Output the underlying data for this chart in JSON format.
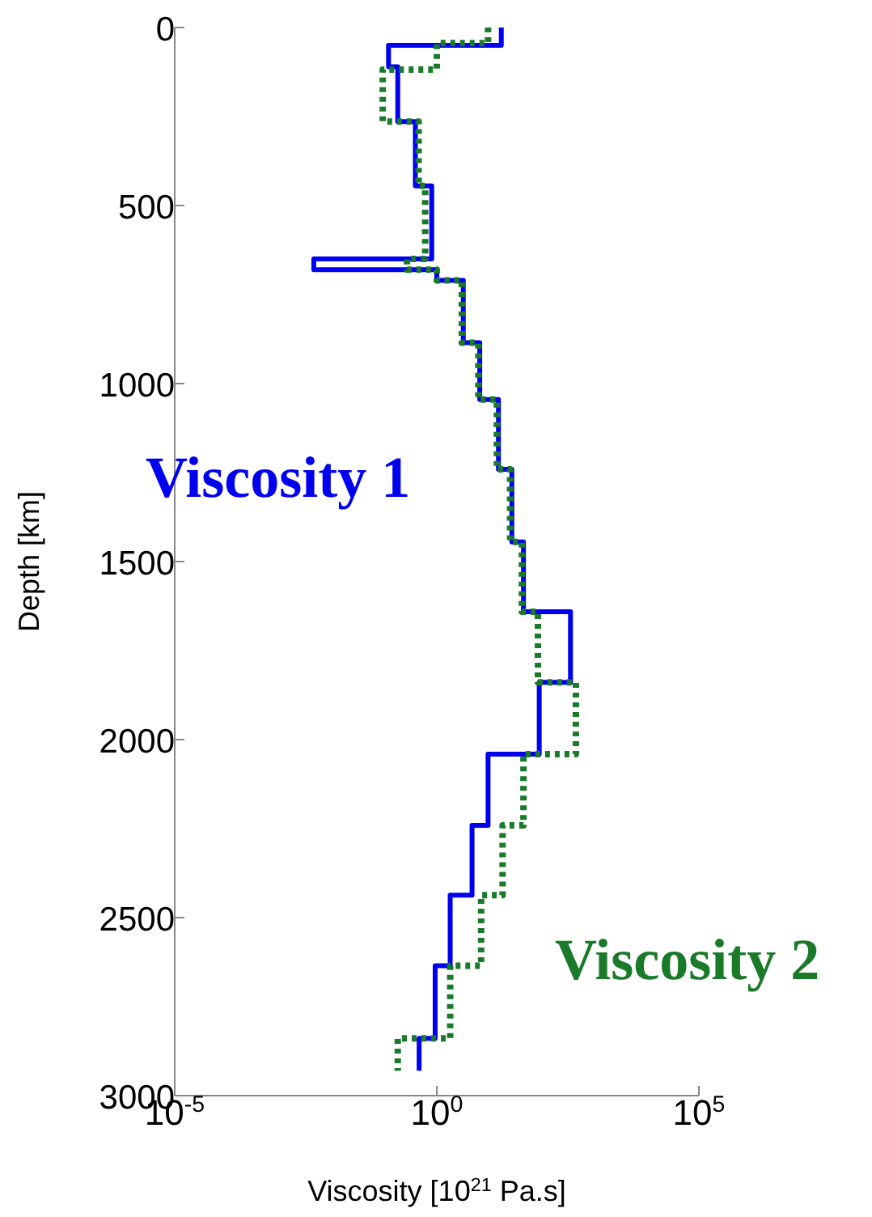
{
  "chart_data": {
    "type": "step",
    "orientation": "horizontal",
    "xlabel": "Viscosity [10$^{21}$ Pa.s]",
    "ylabel": "Depth [km]",
    "log": "x",
    "xlim": [
      1e-05,
      100000
    ],
    "xticks": [
      {
        "value": 1e-05,
        "label": "10$^{-5}$"
      },
      {
        "value": 1,
        "label": "10$^{0}$"
      },
      {
        "value": 100000,
        "label": "10$^{5}$"
      }
    ],
    "ylim": [
      3000,
      0
    ],
    "yticks": [
      0,
      500,
      1000,
      1500,
      2000,
      2500,
      3000
    ],
    "grid": false,
    "legend": false,
    "series": [
      {
        "name": "Viscosity 1",
        "color": "#0000ee",
        "line_style": "solid",
        "x": [
          0,
          50,
          110,
          264,
          445,
          650,
          680,
          710,
          885,
          1045,
          1241,
          1445,
          1641,
          1839,
          2041,
          2241,
          2437,
          2635,
          2839,
          2930
        ],
        "values": [
          17,
          0.12,
          0.18,
          0.39,
          0.8,
          0.0045,
          1.0,
          3.2,
          6.6,
          15,
          27,
          45,
          355,
          90,
          9.5,
          4.7,
          1.8,
          0.93,
          0.46,
          0.46
        ]
      },
      {
        "name": "Viscosity 2",
        "color": "#1a7a2a",
        "line_style": "dotted",
        "x": [
          0,
          44,
          118,
          264,
          445,
          650,
          680,
          710,
          885,
          1045,
          1241,
          1445,
          1641,
          1839,
          2041,
          2241,
          2437,
          2635,
          2839,
          2930
        ],
        "values": [
          9.5,
          1.0,
          0.093,
          0.45,
          0.6,
          0.27,
          1.0,
          3.0,
          6.2,
          14,
          25,
          42,
          85,
          450,
          45,
          18,
          7,
          1.8,
          0.18,
          0.18
        ]
      }
    ]
  }
}
